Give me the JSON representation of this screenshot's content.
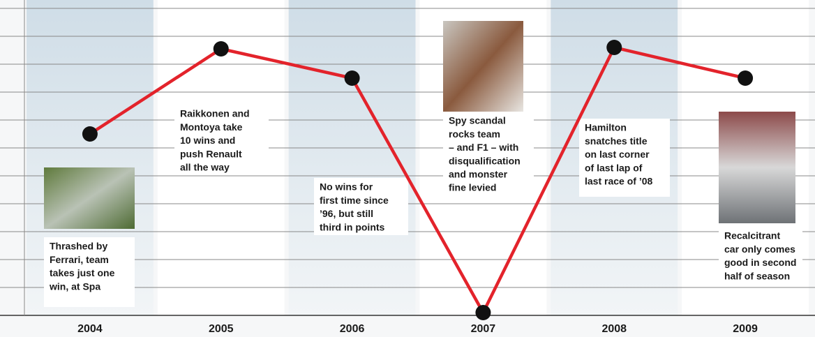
{
  "chart_data": {
    "type": "line",
    "categories": [
      "2004",
      "2005",
      "2006",
      "2007",
      "2008",
      "2009"
    ],
    "values": [
      6.5,
      9.55,
      8.5,
      0.1,
      9.6,
      8.5
    ],
    "color": "#e3232b",
    "ylim": [
      0,
      11
    ],
    "yticks": [
      0,
      1,
      2,
      3,
      4,
      5,
      6,
      7,
      8,
      9,
      10,
      11
    ],
    "grid": true,
    "annotations": [
      [
        "Thrashed by",
        "Ferrari, team",
        "takes just one",
        "win, at Spa"
      ],
      [
        "Raikkonen and",
        "Montoya take",
        "10 wins and",
        "push Renault",
        "all the way"
      ],
      [
        "No wins for",
        "first time since",
        "’96, but still",
        "third in points"
      ],
      [
        "Spy scandal",
        "rocks team",
        "– and F1 – with",
        "disqualification",
        "and monster",
        "fine levied"
      ],
      [
        "Hamilton",
        "snatches title",
        "on last corner",
        "of last lap of",
        "last race of ’08"
      ],
      [
        "Recalcitrant",
        "car only comes",
        "good in second",
        "half of season"
      ]
    ]
  }
}
